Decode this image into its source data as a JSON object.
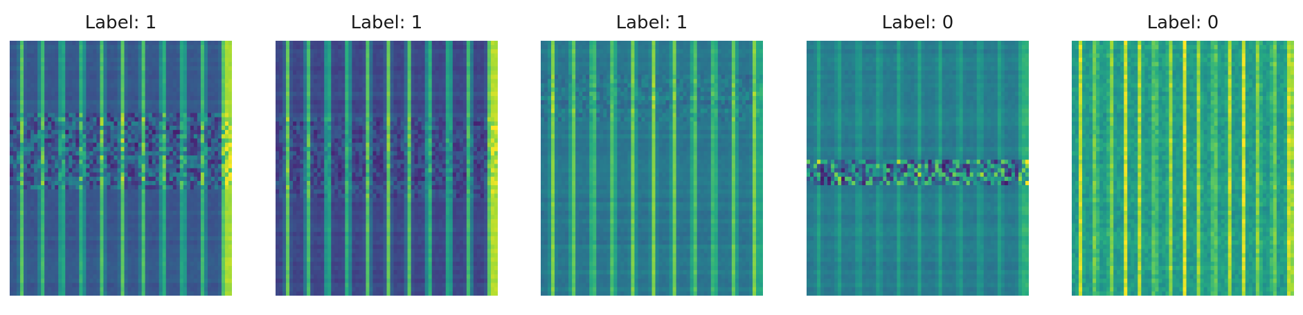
{
  "chart_data": [
    {
      "type": "heatmap",
      "title": "Label: 1",
      "colormap": "viridis",
      "axes_visible": false,
      "grid": false,
      "pattern": {
        "bands": 11,
        "base": 0.28,
        "band_peak": 0.75,
        "right_edge": 0.88,
        "disturbance": {
          "from": 0.28,
          "to": 0.58,
          "strength": 0.18
        }
      }
    },
    {
      "type": "heatmap",
      "title": "Label: 1",
      "colormap": "viridis",
      "axes_visible": false,
      "grid": false,
      "pattern": {
        "bands": 11,
        "base": 0.22,
        "band_peak": 0.78,
        "right_edge": 0.9,
        "disturbance": {
          "from": 0.3,
          "to": 0.6,
          "strength": 0.1
        }
      }
    },
    {
      "type": "heatmap",
      "title": "Label: 1",
      "colormap": "viridis",
      "axes_visible": false,
      "grid": false,
      "pattern": {
        "bands": 11,
        "base": 0.4,
        "band_peak": 0.82,
        "right_edge": 0.6,
        "disturbance": {
          "from": 0.12,
          "to": 0.3,
          "strength": 0.08
        }
      }
    },
    {
      "type": "heatmap",
      "title": "Label: 0",
      "colormap": "viridis",
      "axes_visible": false,
      "grid": false,
      "pattern": {
        "bands": 11,
        "base": 0.42,
        "band_peak": 0.58,
        "right_edge": 0.65,
        "disturbance": {
          "from": 0.46,
          "to": 0.55,
          "strength": 0.35
        }
      }
    },
    {
      "type": "heatmap",
      "title": "Label: 0",
      "colormap": "viridis",
      "axes_visible": false,
      "grid": false,
      "pattern": {
        "bands": 15,
        "base": 0.55,
        "band_peak": 0.95,
        "right_edge": 0.85,
        "disturbance": {
          "from": 0.0,
          "to": 1.0,
          "strength": 0.06
        }
      }
    }
  ]
}
